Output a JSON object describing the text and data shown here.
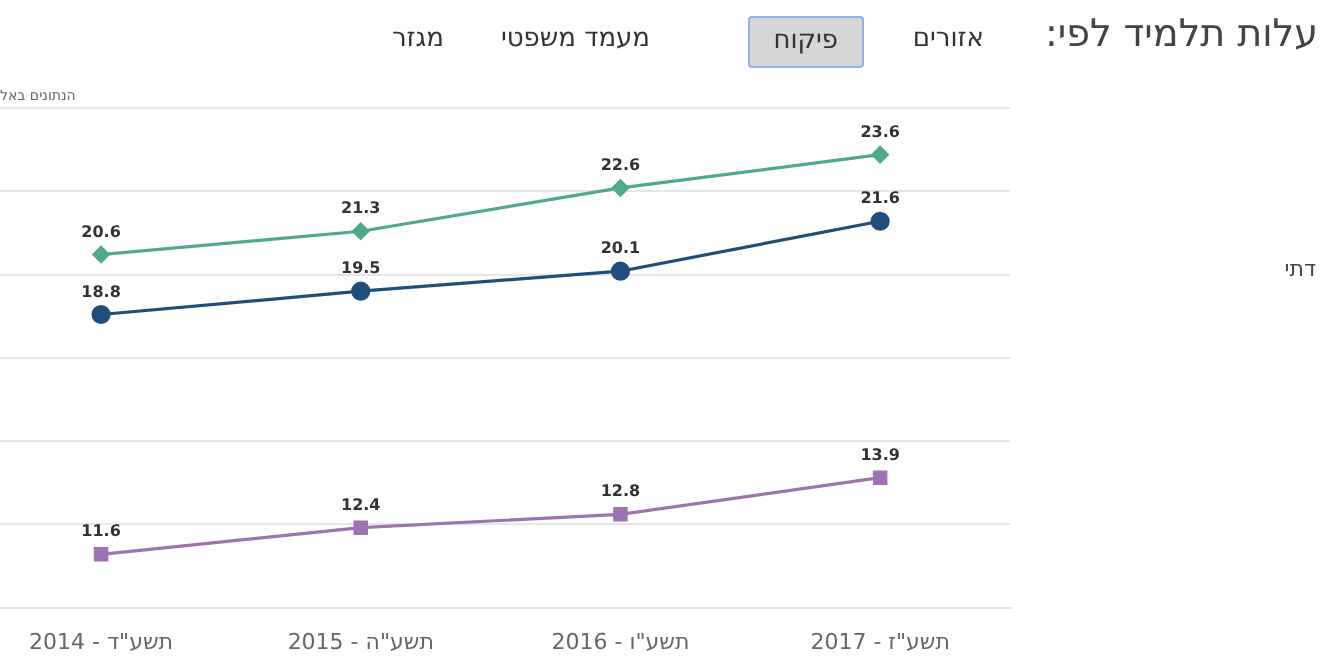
{
  "chart_data": {
    "type": "line",
    "title": "עלות תלמיד לפי:",
    "subtitle": "הנתונים באל",
    "annotations": [
      "אזורים",
      "פיקוח",
      "מעמד משפטי",
      "מגזר",
      "דתי"
    ],
    "categories": [
      "תשע\"ד - 2014",
      "תשע\"ה - 2015",
      "תשע\"ו - 2016",
      "תשע\"ז - 2017"
    ],
    "series": [
      {
        "color": "#4fa98d",
        "marker": "diamond",
        "values": [
          20.6,
          21.3,
          22.6,
          23.6
        ]
      },
      {
        "color": "#1f4e7a",
        "marker": "circle",
        "values": [
          18.8,
          19.5,
          20.1,
          21.6
        ]
      },
      {
        "color": "#9d73b3",
        "marker": "square",
        "values": [
          11.6,
          12.4,
          12.8,
          13.9
        ]
      }
    ],
    "ylim": [
      10,
      25
    ],
    "yticks": [
      {
        "value": 10,
        "label": null
      },
      {
        "value": 12.5,
        "label": null
      },
      {
        "value": 15,
        "label": null
      },
      {
        "value": 17.5,
        "label": null
      },
      {
        "value": 20,
        "label": null
      },
      {
        "value": 22.5,
        "label": null
      },
      {
        "value": 25,
        "label": null
      }
    ],
    "tick_labels": "x",
    "grid": "y",
    "data_labels": true,
    "legend": false
  }
}
